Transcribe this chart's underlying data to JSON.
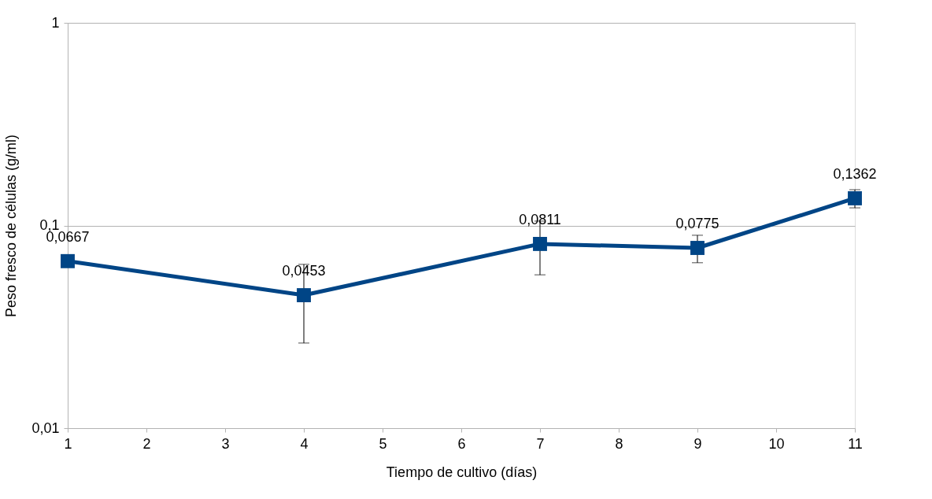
{
  "chart_data": {
    "type": "line",
    "xlabel": "Tiempo de cultivo (días)",
    "ylabel": "Peso fresco de células (g/ml)",
    "x": [
      1,
      4,
      7,
      9,
      11
    ],
    "series": [
      {
        "color": "#004586",
        "values": [
          0.0667,
          0.0453,
          0.0811,
          0.0775,
          0.1362
        ],
        "errors": [
          null,
          0.019,
          0.024,
          0.012,
          0.014
        ],
        "value_labels": [
          "0,0667",
          "0,0453",
          "0,0811",
          "0,0775",
          "0,1362"
        ]
      }
    ],
    "log": "y",
    "xlim": [
      1,
      11
    ],
    "xticks": [
      1,
      2,
      3,
      4,
      5,
      6,
      7,
      8,
      9,
      10,
      11
    ],
    "ylim": [
      0.01,
      1
    ],
    "yticks": [
      {
        "value": 0.01,
        "label": "0,01"
      },
      {
        "value": 0.1,
        "label": "0,1"
      },
      {
        "value": 1,
        "label": "1"
      }
    ],
    "grid": "y",
    "marker": "square",
    "line_style": "solid"
  }
}
